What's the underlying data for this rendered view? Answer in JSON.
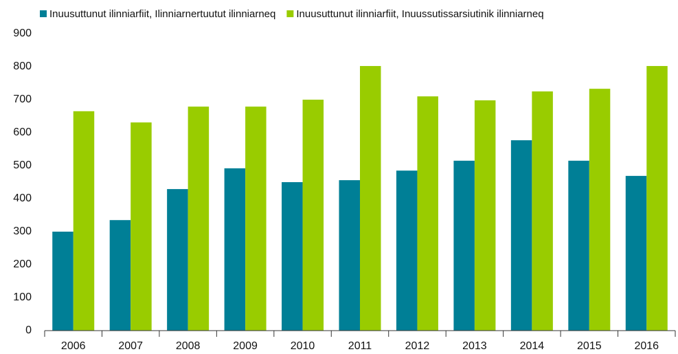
{
  "chart_data": {
    "type": "bar",
    "categories": [
      "2006",
      "2007",
      "2008",
      "2009",
      "2010",
      "2011",
      "2012",
      "2013",
      "2014",
      "2015",
      "2016"
    ],
    "series": [
      {
        "name": "Inuusuttunut ilinniarfiit, Ilinniarnertuutut ilinniarneq",
        "color": "#007f96",
        "values": [
          300,
          335,
          429,
          492,
          450,
          456,
          485,
          515,
          577,
          515,
          469
        ]
      },
      {
        "name": "Inuusuttunut ilinniarfiit, Inuussutissarsiutinik ilinniarneq",
        "color": "#99cc00",
        "values": [
          665,
          631,
          679,
          679,
          700,
          802,
          710,
          698,
          725,
          733,
          802
        ]
      }
    ],
    "ylim": [
      0,
      900
    ],
    "yticks": [
      0,
      100,
      200,
      300,
      400,
      500,
      600,
      700,
      800,
      900
    ],
    "grid": false,
    "legend": "top-left"
  }
}
